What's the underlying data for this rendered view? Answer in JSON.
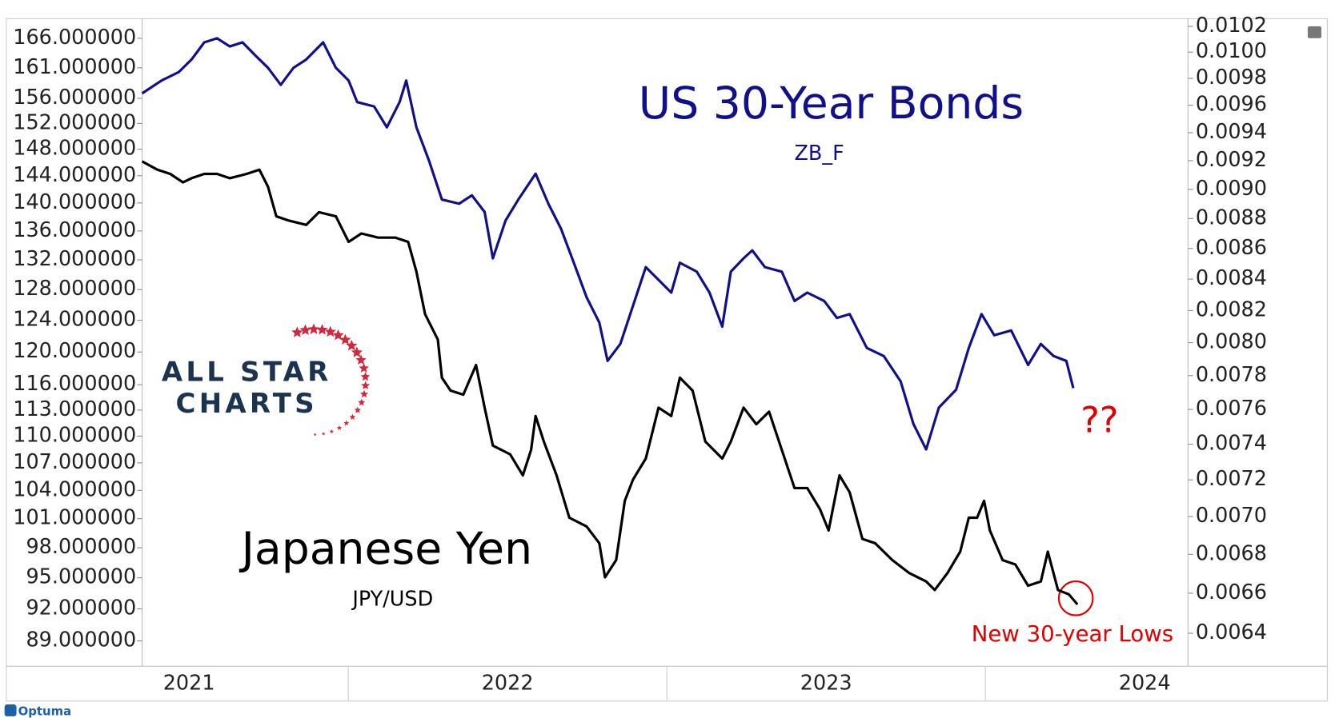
{
  "chart_data": {
    "type": "line",
    "x_scale": "linear",
    "y_scale": "log",
    "y2_scale": "log",
    "xlim": [
      2020.853,
      2024.136
    ],
    "xticks": [
      2021,
      2022,
      2023,
      2024
    ],
    "ylim": [
      169.4,
      86.7
    ],
    "yticks": [
      {
        "value": 166,
        "label": "166.000000"
      },
      {
        "value": 161,
        "label": "161.000000"
      },
      {
        "value": 156,
        "label": "156.000000"
      },
      {
        "value": 152,
        "label": "152.000000"
      },
      {
        "value": 148,
        "label": "148.000000"
      },
      {
        "value": 144,
        "label": "144.000000"
      },
      {
        "value": 140,
        "label": "140.000000"
      },
      {
        "value": 136,
        "label": "136.000000"
      },
      {
        "value": 132,
        "label": "132.000000"
      },
      {
        "value": 128,
        "label": "128.000000"
      },
      {
        "value": 124,
        "label": "124.000000"
      },
      {
        "value": 120,
        "label": "120.000000"
      },
      {
        "value": 116,
        "label": "116.000000"
      },
      {
        "value": 113,
        "label": "113.000000"
      },
      {
        "value": 110,
        "label": "110.000000"
      },
      {
        "value": 107,
        "label": "107.000000"
      },
      {
        "value": 104,
        "label": "104.000000"
      },
      {
        "value": 101,
        "label": "101.000000"
      },
      {
        "value": 98,
        "label": "98.000000"
      },
      {
        "value": 95,
        "label": "95.000000"
      },
      {
        "value": 92,
        "label": "92.000000"
      },
      {
        "value": 89,
        "label": "89.000000"
      }
    ],
    "y2lim": [
      0.01026,
      0.00624
    ],
    "y2ticks": [
      0.0102,
      {
        "value": 0.01,
        "label": "0.0100"
      },
      0.0098,
      0.0096,
      0.0094,
      0.0092,
      {
        "value": 0.009,
        "label": "0.0090"
      },
      0.0088,
      0.0086,
      0.0084,
      0.0082,
      {
        "value": 0.008,
        "label": "0.0080"
      },
      0.0078,
      0.0076,
      0.0074,
      0.0072,
      {
        "value": 0.007,
        "label": "0.0070"
      },
      0.0068,
      0.0066,
      0.0064
    ],
    "series": [
      {
        "name": "US 30-Year Bonds",
        "color": "#10108a",
        "axis": "y",
        "x": [
          2020.853,
          2020.914,
          2020.968,
          2021.008,
          2021.048,
          2021.088,
          2021.128,
          2021.168,
          2021.208,
          2021.248,
          2021.288,
          2021.328,
          2021.368,
          2021.421,
          2021.461,
          2021.501,
          2021.528,
          2021.581,
          2021.621,
          2021.661,
          2021.682,
          2021.714,
          2021.754,
          2021.794,
          2021.848,
          2021.888,
          2021.928,
          2021.954,
          2021.994,
          2022.034,
          2022.088,
          2022.128,
          2022.168,
          2022.208,
          2022.248,
          2022.288,
          2022.314,
          2022.354,
          2022.394,
          2022.434,
          2022.474,
          2022.514,
          2022.541,
          2022.594,
          2022.634,
          2022.674,
          2022.701,
          2022.741,
          2022.768,
          2022.808,
          2022.861,
          2022.901,
          2022.941,
          2022.994,
          2023.034,
          2023.074,
          2023.128,
          2023.181,
          2023.234,
          2023.274,
          2023.314,
          2023.354,
          2023.408,
          2023.448,
          2023.488,
          2023.528,
          2023.581,
          2023.634,
          2023.674,
          2023.714,
          2023.754,
          2023.776
        ],
        "values": [
          156.8,
          158.9,
          160.3,
          162.4,
          165.3,
          166.0,
          164.6,
          165.3,
          163.1,
          161.0,
          158.2,
          161.0,
          162.4,
          165.3,
          161.0,
          158.9,
          155.4,
          154.7,
          151.4,
          155.4,
          158.9,
          151.4,
          146.2,
          140.5,
          139.9,
          141.1,
          138.7,
          132.2,
          137.5,
          140.5,
          144.3,
          139.9,
          136.3,
          131.6,
          127.0,
          123.7,
          118.9,
          121.0,
          125.9,
          131.0,
          129.3,
          127.6,
          131.6,
          130.4,
          127.6,
          123.2,
          130.4,
          132.2,
          133.3,
          131.0,
          130.4,
          126.5,
          127.6,
          126.5,
          124.3,
          124.8,
          120.5,
          119.5,
          116.4,
          111.4,
          108.5,
          113.3,
          115.4,
          120.5,
          124.8,
          122.1,
          122.7,
          118.4,
          121.0,
          119.5,
          118.9,
          115.6
        ]
      },
      {
        "name": "Japanese Yen",
        "color": "#000000",
        "axis": "y2",
        "x": [
          2020.853,
          2020.901,
          2020.941,
          2020.981,
          2021.008,
          2021.048,
          2021.088,
          2021.128,
          2021.181,
          2021.221,
          2021.248,
          2021.274,
          2021.314,
          2021.368,
          2021.408,
          2021.461,
          2021.501,
          2021.541,
          2021.594,
          2021.648,
          2021.688,
          2021.714,
          2021.741,
          2021.781,
          2021.794,
          2021.821,
          2021.861,
          2021.901,
          2021.928,
          2021.954,
          2022.008,
          2022.048,
          2022.074,
          2022.088,
          2022.114,
          2022.154,
          2022.194,
          2022.248,
          2022.288,
          2022.306,
          2022.341,
          2022.368,
          2022.394,
          2022.434,
          2022.474,
          2022.514,
          2022.541,
          2022.581,
          2022.621,
          2022.674,
          2022.701,
          2022.741,
          2022.781,
          2022.821,
          2022.861,
          2022.901,
          2022.941,
          2022.981,
          2023.008,
          2023.042,
          2023.074,
          2023.114,
          2023.154,
          2023.208,
          2023.261,
          2023.314,
          2023.341,
          2023.381,
          2023.421,
          2023.448,
          2023.474,
          2023.496,
          2023.514,
          2023.554,
          2023.594,
          2023.634,
          2023.674,
          2023.696,
          2023.728,
          2023.762,
          2023.789
        ],
        "values": [
          0.009195,
          0.009136,
          0.009107,
          0.009048,
          0.009077,
          0.009107,
          0.009107,
          0.009077,
          0.009107,
          0.009136,
          0.009018,
          0.008815,
          0.008786,
          0.008757,
          0.008843,
          0.008815,
          0.008644,
          0.0087,
          0.008672,
          0.008672,
          0.008644,
          0.008449,
          0.008177,
          0.008019,
          0.007788,
          0.007711,
          0.007687,
          0.007864,
          0.007611,
          0.007392,
          0.007343,
          0.007225,
          0.007368,
          0.007562,
          0.007415,
          0.007225,
          0.006994,
          0.006947,
          0.006858,
          0.006681,
          0.00677,
          0.007085,
          0.007202,
          0.007319,
          0.007611,
          0.007562,
          0.007788,
          0.007711,
          0.007415,
          0.007319,
          0.007415,
          0.007611,
          0.007514,
          0.007587,
          0.007368,
          0.007155,
          0.007155,
          0.007039,
          0.006926,
          0.007225,
          0.007131,
          0.006881,
          0.006858,
          0.00677,
          0.006703,
          0.00666,
          0.006616,
          0.006703,
          0.006814,
          0.006994,
          0.006994,
          0.007085,
          0.006926,
          0.00677,
          0.006747,
          0.006638,
          0.00666,
          0.006814,
          0.006616,
          0.006594,
          0.006543
        ]
      }
    ],
    "annotations": [
      "ZB_F",
      "JPY/USD",
      "??",
      "New 30-year Lows"
    ],
    "logo": [
      "ALL STAR",
      "CHARTS"
    ],
    "footer": "Optuma"
  }
}
